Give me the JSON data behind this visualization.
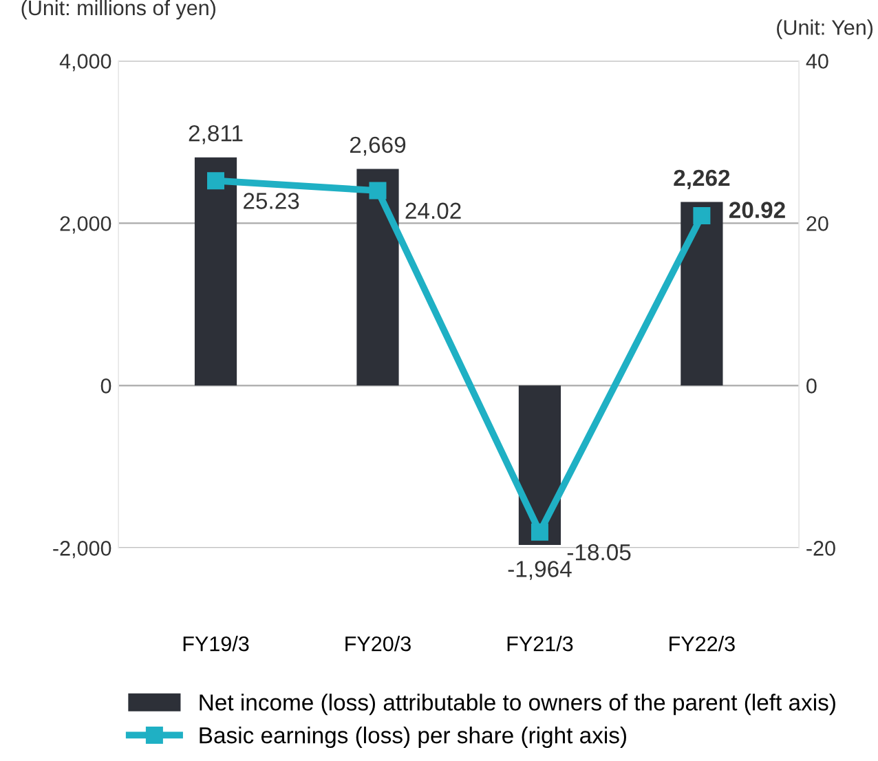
{
  "chart_data": {
    "type": "bar",
    "categories": [
      "FY19/3",
      "FY20/3",
      "FY21/3",
      "FY22/3"
    ],
    "ylabel": "(Unit: millions of yen)",
    "y2label": "(Unit: Yen)",
    "series": [
      {
        "name": "Net income (loss) attributable to owners of the parent (left axis)",
        "color": "#2d3038",
        "values": [
          2811,
          2669,
          -1964,
          2262
        ],
        "value_labels": [
          "2,811",
          "2,669",
          "-1,964",
          "2,262"
        ]
      },
      {
        "name": "Basic earnings (loss) per share (right axis)",
        "type": "line",
        "axis": "y2",
        "color": "#1fb0c4",
        "marker": "square",
        "values": [
          25.23,
          24.02,
          -18.05,
          20.92
        ],
        "value_labels": [
          "25.23",
          "24.02",
          "-18.05",
          "20.92"
        ]
      }
    ],
    "ylim": [
      -2000,
      4000
    ],
    "yticks": [
      {
        "value": -2000,
        "label": "-2,000"
      },
      0,
      {
        "value": 2000,
        "label": "2,000"
      },
      {
        "value": 4000,
        "label": "4,000"
      }
    ],
    "y2lim": [
      -20,
      40
    ],
    "y2ticks": [
      -20,
      0,
      20,
      40
    ],
    "grid": "y",
    "legend": "bottom"
  }
}
